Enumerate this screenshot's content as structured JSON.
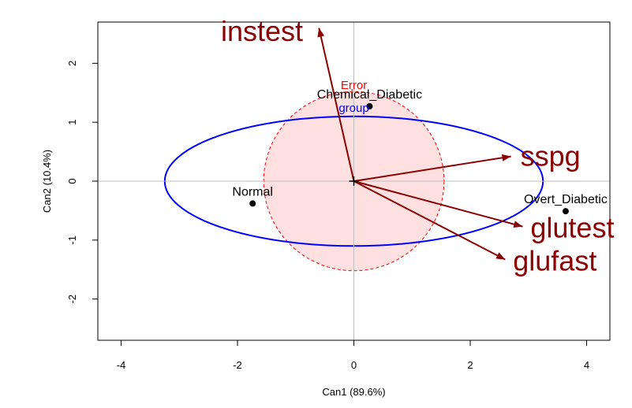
{
  "chart_data": {
    "type": "scatter",
    "title": "",
    "xlabel": "Can1 (89.6%)",
    "ylabel": "Can2 (10.4%)",
    "xlim": [
      -4.4,
      4.4
    ],
    "ylim": [
      -2.7,
      2.7
    ],
    "xticks": [
      -4,
      -2,
      0,
      2,
      4
    ],
    "yticks": [
      -2,
      -1,
      0,
      1,
      2
    ],
    "grid": "reference lines at 0",
    "points": [
      {
        "label": "Normal",
        "x": -1.74,
        "y": -0.38
      },
      {
        "label": "Chemical_Diabetic",
        "x": 0.27,
        "y": 1.27
      },
      {
        "label": "Overt_Diabetic",
        "x": 3.64,
        "y": -0.51
      }
    ],
    "vectors": [
      {
        "label": "instest",
        "x": -0.6,
        "y": 2.6
      },
      {
        "label": "sspg",
        "x": 2.7,
        "y": 0.42
      },
      {
        "label": "glutest",
        "x": 2.9,
        "y": -0.77
      },
      {
        "label": "glufast",
        "x": 2.6,
        "y": -1.33
      }
    ],
    "ellipses": [
      {
        "label": "Error",
        "center": [
          0,
          0
        ],
        "rx": 1.55,
        "ry": 1.52,
        "color": "#ff0000",
        "fill": "#ffe0e0",
        "style": "dashed"
      },
      {
        "label": "group",
        "center": [
          0,
          0
        ],
        "rx": 3.25,
        "ry": 1.1,
        "color": "#0000ff",
        "style": "solid"
      }
    ],
    "colors": {
      "points": "#000000",
      "vectors": "#8b0000",
      "axes": "#000000",
      "reference": "#bebebe"
    }
  }
}
